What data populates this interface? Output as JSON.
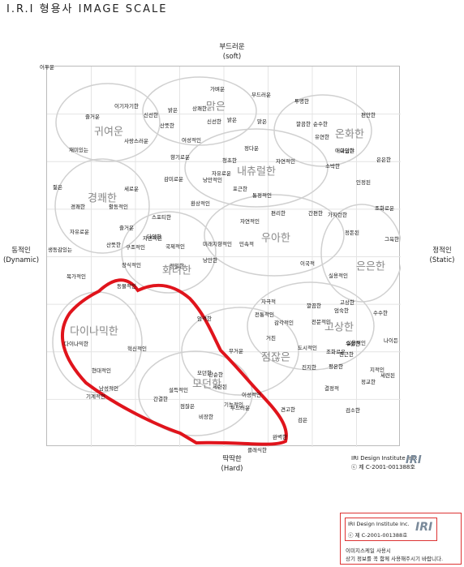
{
  "title": "I.R.I 형용사 IMAGE SCALE",
  "axes": {
    "top_kr": "부드러운",
    "top_en": "(soft)",
    "bottom_kr": "딱딱한",
    "bottom_en": "(Hard)",
    "left_kr": "동적인",
    "left_en": "(Dynamic)",
    "right_kr": "정적인",
    "right_en": "(Static)"
  },
  "credit": {
    "line1": "IRI Design Institute Inc.",
    "line2": "ⓒ 제 C-2001-001388호",
    "logo": "IRI"
  },
  "footer": {
    "line1": "IRI Design Institute Inc.",
    "line2": "ⓒ 제 C-2001-001388호",
    "logo": "IRI",
    "line3": "이미지스케일 사용시",
    "line4": "상기 정보를 꼭 함께 사용해주시기 바랍니다."
  },
  "colors": {
    "highlight": "#e0141c",
    "cluster_outline": "#d0d0d0",
    "grid": "#e4e4e4"
  },
  "clusters": [
    {
      "label": "귀여운"
    },
    {
      "label": "맑은"
    },
    {
      "label": "온화한"
    },
    {
      "label": "내츄럴한"
    },
    {
      "label": "경쾌한"
    },
    {
      "label": "우아한"
    },
    {
      "label": "화려한"
    },
    {
      "label": "은은한"
    },
    {
      "label": "다이나믹한"
    },
    {
      "label": "고상한"
    },
    {
      "label": "점잖은"
    },
    {
      "label": "모던한"
    }
  ],
  "words": [
    "가벼운",
    "부드러운",
    "투명한",
    "이기자기한",
    "밝은",
    "상쾌한",
    "신선한",
    "즐거운",
    "산뜻한",
    "신선한",
    "밝은",
    "맑은",
    "깔끔한",
    "순수한",
    "편안한",
    "유연한",
    "아담한",
    "사랑스러운",
    "여성적인",
    "정다운",
    "재미있는",
    "향기로운",
    "청초한",
    "자연적인",
    "애교있는",
    "은은한",
    "자유로운",
    "낭만적인",
    "감미로운",
    "포근한",
    "통정적인",
    "소박한",
    "인정된",
    "젊은",
    "세로운",
    "환상적인",
    "경쾌한",
    "활동적인",
    "스포티한",
    "자유로운",
    "즐거운",
    "자연적인",
    "편리한",
    "산뜻한",
    "간편한",
    "가지런한",
    "조화로운",
    "정돈된",
    "자연적인",
    "그윽한",
    "생동감있는",
    "구조적인",
    "다양한",
    "국제적인",
    "미래지향적인",
    "낭만한",
    "민속적",
    "장식적인",
    "정밀한",
    "목가적인",
    "동물적인",
    "이국적",
    "실용적인",
    "다이나믹한",
    "혁신적인",
    "설득적인",
    "모던한",
    "단순한",
    "세련된",
    "점잖은",
    "기능적인",
    "비장한",
    "부드러운",
    "클래식한",
    "깔끔한",
    "전통적인",
    "조화로운",
    "수수한",
    "자극적",
    "고상한",
    "도시적인",
    "지적인",
    "엄숙한",
    "친근한",
    "세련된",
    "평온한",
    "정교한",
    "검소한",
    "전문적인",
    "실용적인",
    "거친",
    "감각적인",
    "엄격한",
    "현대적인",
    "남성적인",
    "간결한",
    "기계적인",
    "무거운",
    "견고한",
    "이성적인",
    "진지한",
    "나이든",
    "우울한",
    "검은",
    "결정적",
    "완벽한",
    "어두운"
  ]
}
